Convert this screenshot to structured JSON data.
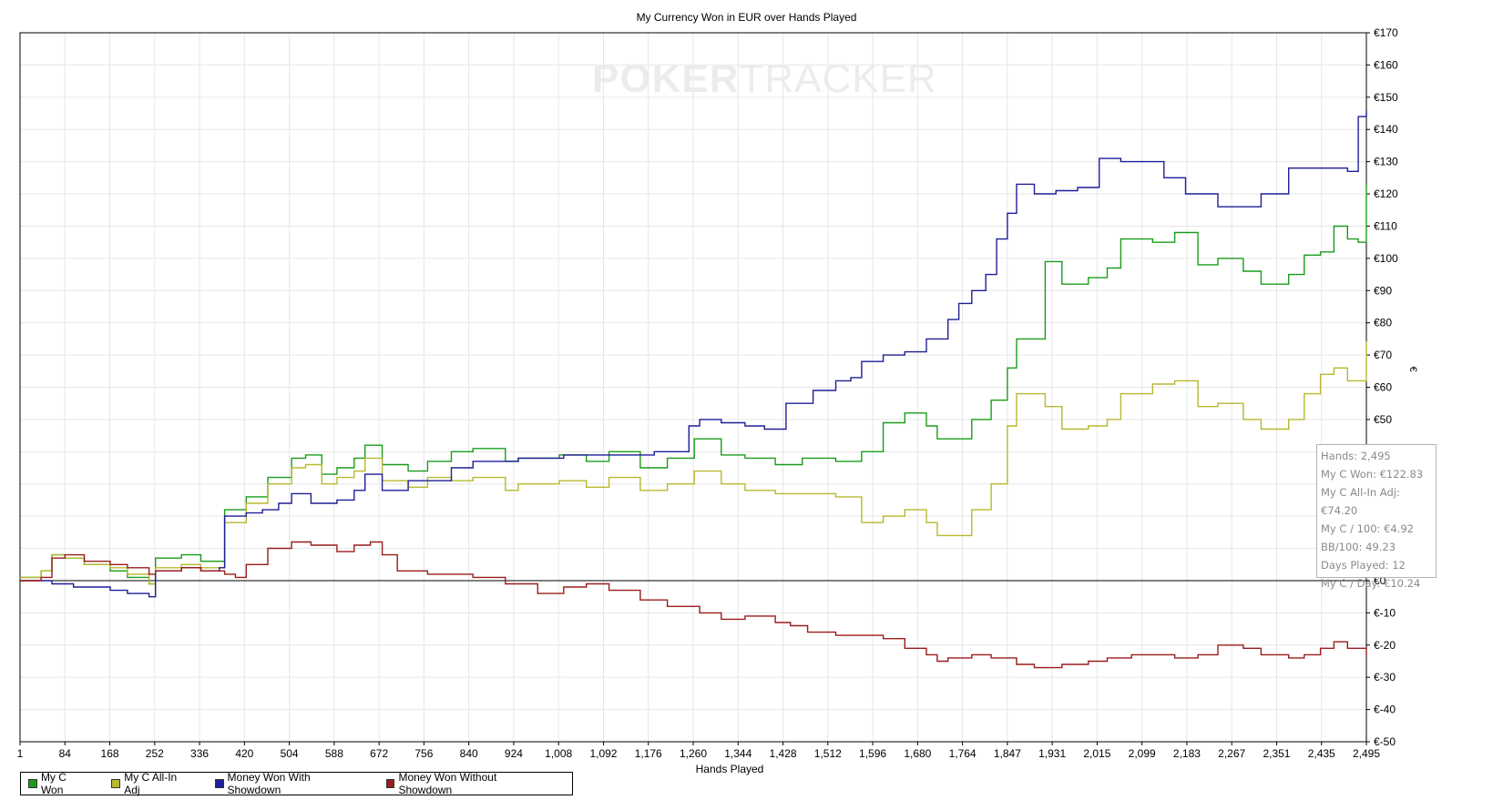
{
  "chart_data": {
    "type": "line",
    "title": "My Currency Won in EUR over Hands Played",
    "xlabel": "Hands Played",
    "ylabel": "€",
    "xlim": [
      1,
      2495
    ],
    "ylim": [
      -50,
      170
    ],
    "x_ticks": [
      "1",
      "84",
      "168",
      "252",
      "336",
      "420",
      "504",
      "588",
      "672",
      "756",
      "840",
      "924",
      "1,008",
      "1,092",
      "1,176",
      "1,260",
      "1,344",
      "1,428",
      "1,512",
      "1,596",
      "1,680",
      "1,764",
      "1,847",
      "1,931",
      "2,015",
      "2,099",
      "2,183",
      "2,267",
      "2,351",
      "2,435",
      "2,495"
    ],
    "y_ticks": [
      "€170",
      "€160",
      "€150",
      "€140",
      "€130",
      "€120",
      "€110",
      "€100",
      "€90",
      "€80",
      "€70",
      "€60",
      "€50",
      "€40",
      "€30",
      "€20",
      "€10",
      "€0",
      "€-10",
      "€-20",
      "€-30",
      "€-40",
      "€-50"
    ],
    "y_tick_values": [
      170,
      160,
      150,
      140,
      130,
      120,
      110,
      100,
      90,
      80,
      70,
      60,
      50,
      40,
      30,
      20,
      10,
      0,
      -10,
      -20,
      -30,
      -40,
      -50
    ],
    "grid": true,
    "legend_position": "bottom-left",
    "series": [
      {
        "name": "My C Won",
        "color": "#1a9c1a",
        "x": [
          1,
          40,
          60,
          84,
          120,
          168,
          200,
          240,
          252,
          300,
          336,
          380,
          420,
          460,
          504,
          530,
          560,
          588,
          620,
          640,
          672,
          720,
          756,
          800,
          840,
          900,
          924,
          1000,
          1050,
          1092,
          1150,
          1200,
          1250,
          1300,
          1344,
          1400,
          1450,
          1512,
          1560,
          1600,
          1640,
          1680,
          1700,
          1764,
          1800,
          1830,
          1847,
          1900,
          1931,
          1980,
          2015,
          2040,
          2099,
          2140,
          2183,
          2220,
          2267,
          2300,
          2351,
          2380,
          2410,
          2435,
          2460,
          2480,
          2495
        ],
        "y": [
          1,
          3,
          8,
          7,
          5,
          3,
          1,
          -1,
          7,
          8,
          6,
          22,
          26,
          32,
          38,
          39,
          33,
          35,
          38,
          42,
          36,
          34,
          37,
          40,
          41,
          37,
          38,
          39,
          37,
          40,
          35,
          38,
          44,
          39,
          38,
          36,
          38,
          37,
          40,
          49,
          52,
          48,
          44,
          50,
          56,
          66,
          75,
          99,
          92,
          94,
          97,
          106,
          105,
          108,
          98,
          100,
          96,
          92,
          95,
          101,
          102,
          110,
          106,
          105,
          122.8
        ]
      },
      {
        "name": "My C All-In Adj",
        "color": "#b8b830",
        "x": [
          1,
          40,
          60,
          84,
          120,
          168,
          200,
          240,
          252,
          300,
          336,
          380,
          420,
          460,
          504,
          530,
          560,
          588,
          620,
          640,
          672,
          720,
          756,
          800,
          840,
          900,
          924,
          1000,
          1050,
          1092,
          1150,
          1200,
          1250,
          1300,
          1344,
          1400,
          1450,
          1512,
          1560,
          1600,
          1640,
          1680,
          1700,
          1764,
          1800,
          1830,
          1847,
          1900,
          1931,
          1980,
          2015,
          2040,
          2099,
          2140,
          2183,
          2220,
          2267,
          2300,
          2351,
          2380,
          2410,
          2435,
          2460,
          2480,
          2495
        ],
        "y": [
          1,
          3,
          8,
          7,
          5,
          4,
          2,
          -1,
          4,
          5,
          4,
          18,
          24,
          30,
          35,
          36,
          30,
          32,
          34,
          38,
          31,
          29,
          32,
          31,
          32,
          28,
          30,
          31,
          29,
          32,
          28,
          30,
          34,
          30,
          28,
          27,
          27,
          26,
          18,
          20,
          22,
          18,
          14,
          22,
          30,
          48,
          58,
          54,
          47,
          48,
          50,
          58,
          61,
          62,
          54,
          55,
          50,
          47,
          50,
          58,
          64,
          66,
          62,
          62,
          74.2
        ]
      },
      {
        "name": "Money Won With Showdown",
        "color": "#1e1e96",
        "x": [
          1,
          60,
          100,
          168,
          200,
          240,
          252,
          300,
          336,
          370,
          380,
          420,
          450,
          480,
          504,
          540,
          588,
          620,
          640,
          672,
          720,
          756,
          800,
          840,
          880,
          924,
          980,
          1008,
          1050,
          1092,
          1130,
          1176,
          1210,
          1240,
          1260,
          1300,
          1344,
          1380,
          1420,
          1470,
          1512,
          1540,
          1560,
          1600,
          1640,
          1680,
          1720,
          1740,
          1764,
          1790,
          1810,
          1830,
          1847,
          1880,
          1920,
          1960,
          2000,
          2040,
          2080,
          2120,
          2160,
          2183,
          2220,
          2267,
          2300,
          2351,
          2380,
          2410,
          2435,
          2460,
          2480,
          2495
        ],
        "y": [
          0,
          -1,
          -2,
          -3,
          -4,
          -5,
          3,
          4,
          3,
          4,
          20,
          21,
          22,
          24,
          27,
          24,
          25,
          28,
          33,
          28,
          31,
          31,
          35,
          37,
          37,
          38,
          38,
          39,
          39,
          39,
          39,
          40,
          40,
          48,
          50,
          49,
          48,
          47,
          55,
          59,
          62,
          63,
          68,
          70,
          71,
          75,
          81,
          86,
          90,
          95,
          106,
          114,
          123,
          120,
          121,
          122,
          131,
          130,
          130,
          125,
          120,
          120,
          116,
          116,
          120,
          128,
          128,
          128,
          128,
          127,
          144,
          145.8
        ]
      },
      {
        "name": "Money Won Without Showdown",
        "color": "#9b1c1c",
        "x": [
          1,
          40,
          60,
          84,
          120,
          168,
          200,
          240,
          252,
          300,
          336,
          380,
          400,
          420,
          460,
          504,
          540,
          588,
          620,
          650,
          672,
          700,
          756,
          800,
          840,
          900,
          960,
          1008,
          1050,
          1092,
          1150,
          1200,
          1260,
          1300,
          1344,
          1400,
          1428,
          1460,
          1512,
          1560,
          1600,
          1640,
          1680,
          1700,
          1720,
          1764,
          1800,
          1847,
          1880,
          1931,
          1980,
          2015,
          2060,
          2099,
          2140,
          2183,
          2220,
          2267,
          2300,
          2351,
          2380,
          2410,
          2435,
          2460,
          2495
        ],
        "y": [
          0,
          1,
          7,
          8,
          6,
          5,
          4,
          2,
          3,
          4,
          3,
          2,
          1,
          5,
          10,
          12,
          11,
          9,
          11,
          12,
          8,
          3,
          2,
          2,
          1,
          -1,
          -4,
          -2,
          -1,
          -3,
          -6,
          -8,
          -10,
          -12,
          -11,
          -13,
          -14,
          -16,
          -17,
          -17,
          -18,
          -21,
          -23,
          -25,
          -24,
          -23,
          -24,
          -26,
          -27,
          -26,
          -25,
          -24,
          -23,
          -23,
          -24,
          -23,
          -20,
          -21,
          -23,
          -24,
          -23,
          -21,
          -19,
          -21,
          -23
        ]
      }
    ],
    "tooltip_lines": [
      "Hands: 2,495",
      "My C Won: €122.83",
      "My C All-In Adj: €74.20",
      "My C / 100: €4.92",
      "BB/100: 49.23",
      "Days Played: 12",
      "My C / Day: €10.24"
    ]
  },
  "watermark": {
    "bold": "POKER",
    "light": "TRACKER"
  }
}
